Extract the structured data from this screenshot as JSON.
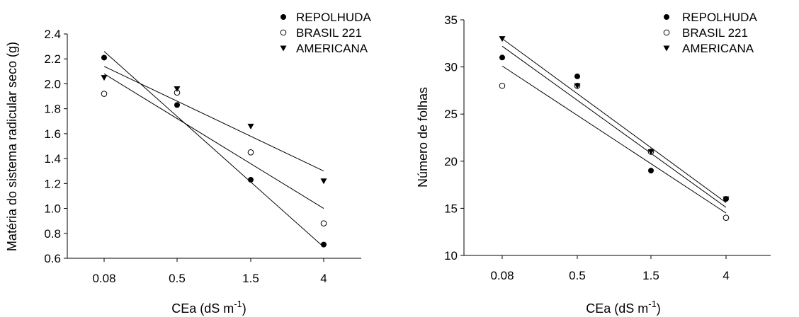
{
  "chart_data": [
    {
      "type": "scatter",
      "xlabel": "CEa (dS m",
      "xlabel_sup": "-1",
      "xlabel_close": ")",
      "ylabel": "Matéria do sistema radicular seco (g)",
      "categories": [
        "0.08",
        "0.5",
        "1.5",
        "4"
      ],
      "ylim": [
        0.6,
        2.4
      ],
      "yticks": [
        "0.6",
        "0.8",
        "1.0",
        "1.2",
        "1.4",
        "1.6",
        "1.8",
        "2.0",
        "2.2",
        "2.4"
      ],
      "legend_position": "top-right",
      "series": [
        {
          "name": "REPOLHUDA",
          "marker": "filled-circle",
          "values": [
            2.21,
            1.83,
            1.23,
            0.71
          ],
          "fit": [
            2.26,
            0.69
          ]
        },
        {
          "name": "BRASIL 221",
          "marker": "open-circle",
          "values": [
            1.92,
            1.93,
            1.45,
            0.88
          ],
          "fit": [
            2.08,
            1.0
          ]
        },
        {
          "name": "AMERICANA",
          "marker": "filled-triangle-down",
          "values": [
            2.05,
            1.96,
            1.66,
            1.22
          ],
          "fit": [
            2.14,
            1.3
          ]
        }
      ]
    },
    {
      "type": "scatter",
      "xlabel": "CEa (dS m",
      "xlabel_sup": "-1",
      "xlabel_close": ")",
      "ylabel": "Número de folhas",
      "categories": [
        "0.08",
        "0.5",
        "1.5",
        "4"
      ],
      "ylim": [
        10,
        35
      ],
      "yticks": [
        "10",
        "15",
        "20",
        "25",
        "30",
        "35"
      ],
      "legend_position": "top-right",
      "series": [
        {
          "name": "REPOLHUDA",
          "marker": "filled-circle",
          "values": [
            31,
            29,
            19,
            16
          ],
          "fit": [
            32.2,
            15.1
          ]
        },
        {
          "name": "BRASIL 221",
          "marker": "open-circle",
          "values": [
            28,
            28,
            21,
            14
          ],
          "fit": [
            30.1,
            14.5
          ]
        },
        {
          "name": "AMERICANA",
          "marker": "filled-triangle-down",
          "values": [
            33,
            28,
            21,
            16
          ],
          "fit": [
            33.0,
            15.6
          ]
        }
      ]
    }
  ]
}
